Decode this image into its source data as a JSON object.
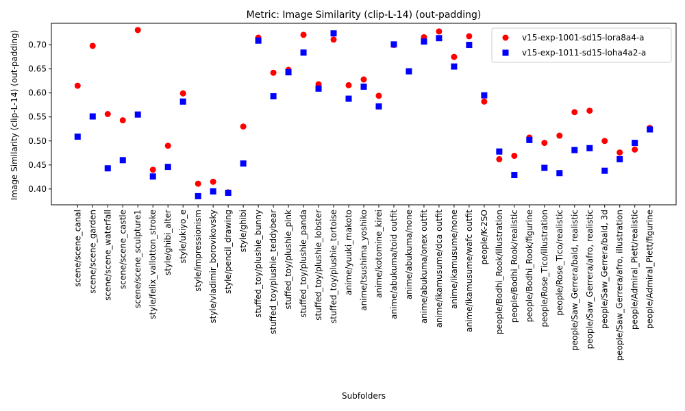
{
  "chart_data": {
    "type": "scatter",
    "title": "Metric: Image Similarity (clip-L-14) (out-padding)",
    "xlabel": "Subfolders",
    "ylabel": "Image Similarity (clip-L-14) (out-padding)",
    "ylim": [
      0.367,
      0.745
    ],
    "yticks": [
      "0.40",
      "0.45",
      "0.50",
      "0.55",
      "0.60",
      "0.65",
      "0.70"
    ],
    "legend_position": "top-right",
    "grid": false,
    "categories": [
      "scene/scene_canal",
      "scene/scene_garden",
      "scene/scene_waterfall",
      "scene/scene_castle",
      "scene/scene_sculpture1",
      "style/felix_vallotton_stroke",
      "style/ghibi_alter",
      "style/ukiyo_e",
      "style/impressionism",
      "style/vladimir_borovikovsky",
      "style/pencil_drawing",
      "style/ghibi",
      "stuffed_toy/plushie_bunny",
      "stuffed_toy/plushie_teddybear",
      "stuffed_toy/plushie_pink",
      "stuffed_toy/plushie_panda",
      "stuffed_toy/plushie_lobster",
      "stuffed_toy/plushie_tortoise",
      "anime/yuuki_makoto",
      "anime/tsushima_yoshiko",
      "anime/kotomine_kirei",
      "anime/abukuma/toid outfit",
      "anime/abukuma/none",
      "anime/abukuma/onex outfit",
      "anime/ikamusume/dca outfit",
      "anime/ikamusume/none",
      "anime/ikamusume/wafc outfit",
      "people/K-2SO",
      "people/Bodhi_Rook/illustration",
      "people/Bodhi_Rook/realistic",
      "people/Bodhi_Rook/figurine",
      "people/Rose_Tico/illustration",
      "people/Rose_Tico/realistic",
      "people/Saw_Gerrera/bald, realistic",
      "people/Saw_Gerrera/afro, realistic",
      "people/Saw_Gerrera/bald, 3d",
      "people/Saw_Gerrera/afro, illustration",
      "people/Admiral_Piett/realistic",
      "people/Admiral_Piett/figurine"
    ],
    "series": [
      {
        "name": "v15-exp-1001-sd15-lora8a4-a",
        "marker": "circle",
        "color": "#ff0000",
        "values": [
          0.615,
          0.698,
          0.556,
          0.543,
          0.731,
          0.44,
          0.49,
          0.599,
          0.411,
          0.415,
          0.393,
          0.53,
          0.715,
          0.642,
          0.648,
          0.721,
          0.618,
          0.711,
          0.616,
          0.628,
          0.594,
          0.7,
          0.645,
          0.716,
          0.728,
          0.675,
          0.718,
          0.582,
          0.462,
          0.469,
          0.507,
          0.496,
          0.511,
          0.56,
          0.563,
          0.5,
          0.476,
          0.482,
          0.527
        ]
      },
      {
        "name": "v15-exp-1011-sd15-loha4a2-a",
        "marker": "square",
        "color": "#0000ff",
        "values": [
          0.509,
          0.551,
          0.443,
          0.46,
          0.555,
          0.426,
          0.446,
          0.582,
          0.385,
          0.395,
          0.392,
          0.453,
          0.709,
          0.593,
          0.643,
          0.684,
          0.609,
          0.724,
          0.588,
          0.613,
          0.572,
          0.701,
          0.645,
          0.707,
          0.714,
          0.655,
          0.7,
          0.595,
          0.478,
          0.429,
          0.502,
          0.444,
          0.433,
          0.481,
          0.485,
          0.438,
          0.462,
          0.496,
          0.524
        ]
      }
    ]
  }
}
